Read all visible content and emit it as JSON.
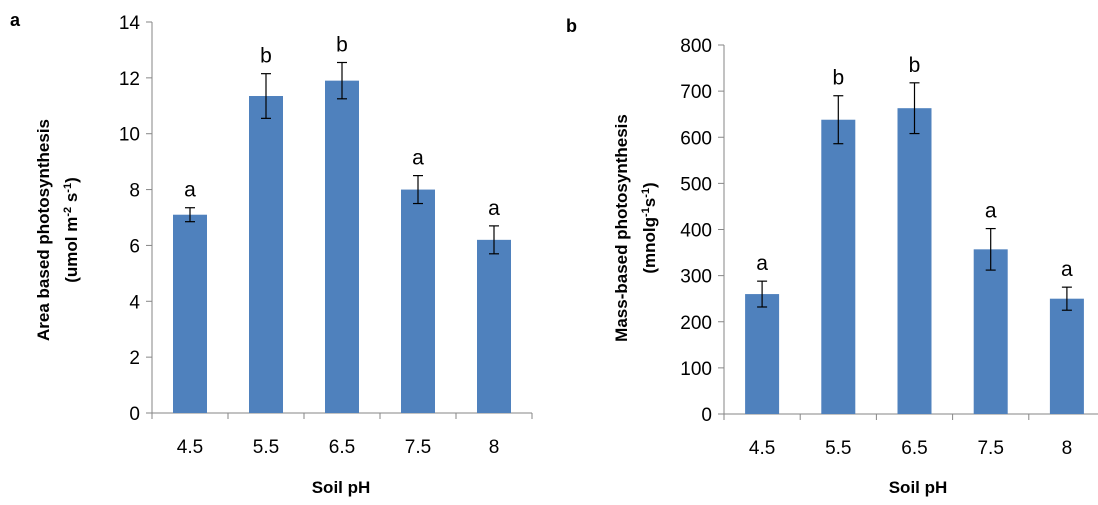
{
  "panels": [
    {
      "label": "a"
    },
    {
      "label": "b"
    }
  ],
  "chart_data": [
    {
      "type": "bar",
      "panel_label": "a",
      "categories": [
        "4.5",
        "5.5",
        "6.5",
        "7.5",
        "8"
      ],
      "values": [
        7.1,
        11.35,
        11.9,
        8.0,
        6.2
      ],
      "errors": [
        0.25,
        0.8,
        0.65,
        0.5,
        0.5
      ],
      "annotations": [
        "a",
        "b",
        "b",
        "a",
        "a"
      ],
      "xlabel": "Soil pH",
      "ylabel_line1": "Area based photosynthesis",
      "ylabel_line2": {
        "pre": "(umol m",
        "sup1": "-2",
        "mid": " s",
        "sup2": "-1",
        "post": ")"
      },
      "ylim": [
        0,
        14
      ],
      "yticks": [
        "0",
        "2",
        "4",
        "6",
        "8",
        "10",
        "12",
        "14"
      ],
      "bar_color": "#4f81bd",
      "grid": false
    },
    {
      "type": "bar",
      "panel_label": "b",
      "categories": [
        "4.5",
        "5.5",
        "6.5",
        "7.5",
        "8"
      ],
      "values": [
        260,
        638,
        663,
        357,
        250
      ],
      "errors": [
        28,
        52,
        55,
        45,
        25
      ],
      "annotations": [
        "a",
        "b",
        "b",
        "a",
        "a"
      ],
      "xlabel": "Soil pH",
      "ylabel_line1": "Mass-based photosynthesis",
      "ylabel_line2": {
        "pre": "(mnolg",
        "sup1": "-1",
        "mid": "s",
        "sup2": "-1",
        "post": ")"
      },
      "ylim": [
        0,
        800
      ],
      "yticks": [
        "0",
        "100",
        "200",
        "300",
        "400",
        "500",
        "600",
        "700",
        "800"
      ],
      "bar_color": "#4f81bd",
      "grid": false
    }
  ]
}
